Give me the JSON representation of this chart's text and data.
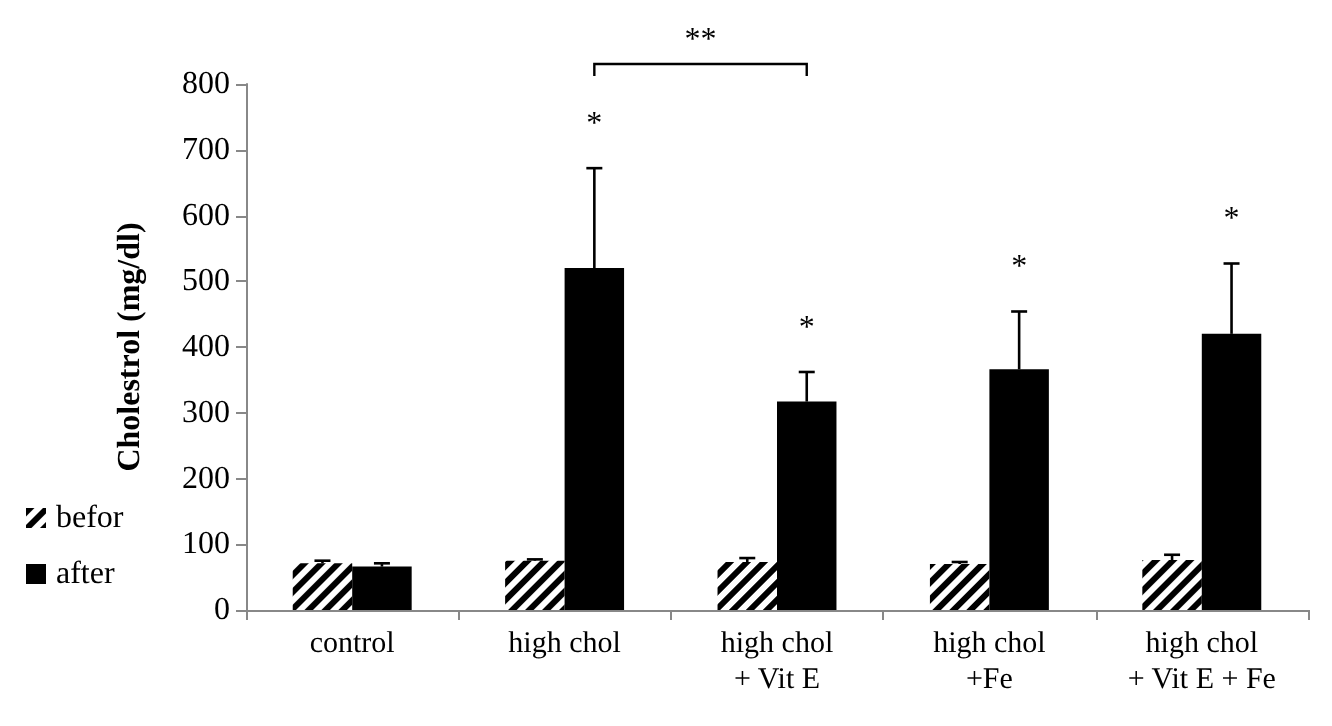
{
  "chart_data": {
    "type": "bar",
    "ylabel": "Cholestrol (mg/dl)",
    "categories": [
      "control",
      "high chol",
      "high chol\n+ Vit E",
      "high chol\n+Fe",
      "high chol\n+ Vit E + Fe"
    ],
    "series": [
      {
        "name": "befor",
        "color": "#000000",
        "values": [
          71,
          75,
          73,
          70,
          76
        ],
        "errors": [
          [
            71,
            75
          ],
          [
            75,
            77
          ],
          [
            73,
            79
          ],
          [
            70,
            73
          ],
          [
            76,
            84
          ]
        ]
      },
      {
        "name": "after",
        "color": "#000000",
        "values": [
          66,
          520,
          317,
          366,
          420
        ],
        "errors": [
          [
            66,
            71
          ],
          [
            520,
            672
          ],
          [
            317,
            362
          ],
          [
            366,
            454
          ],
          [
            420,
            527
          ]
        ]
      }
    ],
    "ylim": [
      0,
      800
    ],
    "yticks": [
      0,
      100,
      200,
      300,
      400,
      500,
      600,
      700,
      800
    ],
    "grid": false,
    "legend": "left",
    "annotations": [
      "*",
      "*",
      "*",
      "*",
      "**"
    ]
  }
}
